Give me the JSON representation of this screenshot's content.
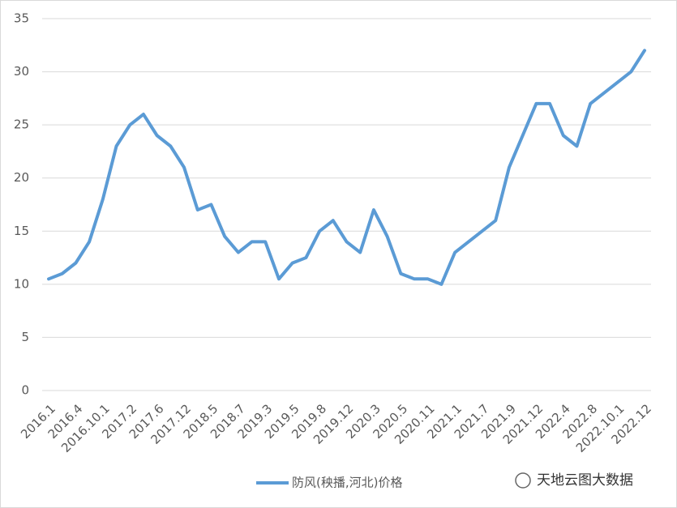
{
  "chart_data": {
    "type": "line",
    "categories": [
      "2016.1",
      null,
      "2016.4",
      null,
      "2016.10.1",
      null,
      "2017.2",
      null,
      "2017.6",
      null,
      "2017.12",
      null,
      "2018.5",
      null,
      "2018.7",
      null,
      "2019.3",
      null,
      "2019.5",
      null,
      "2019.8",
      null,
      "2019.12",
      null,
      "2020.3",
      null,
      "2020.5",
      null,
      "2020.11",
      null,
      "2021.1",
      null,
      "2021.7",
      null,
      "2021.9",
      null,
      "2021.12",
      null,
      "2022.4",
      null,
      "2022.8",
      null,
      "2022.10.1",
      null,
      "2022.12"
    ],
    "series": [
      {
        "name": "防风(秧播,河北)价格",
        "color": "#5b9bd5",
        "values": [
          10.5,
          11,
          12,
          14,
          18,
          23,
          25,
          26,
          24,
          23,
          21,
          17,
          17.5,
          14.5,
          13,
          14,
          14,
          10.5,
          12,
          12.5,
          15,
          16,
          14,
          13,
          17,
          14.5,
          11,
          10.5,
          10.5,
          10,
          13,
          14,
          15,
          16,
          21,
          24,
          27,
          27,
          24,
          23,
          27,
          28,
          29,
          30,
          32
        ]
      }
    ],
    "ylim": [
      0,
      35
    ],
    "yticks": [
      0,
      5,
      10,
      15,
      20,
      25,
      30,
      35
    ],
    "grid": true,
    "legend": "bottom",
    "watermark": "天地云图大数据"
  }
}
